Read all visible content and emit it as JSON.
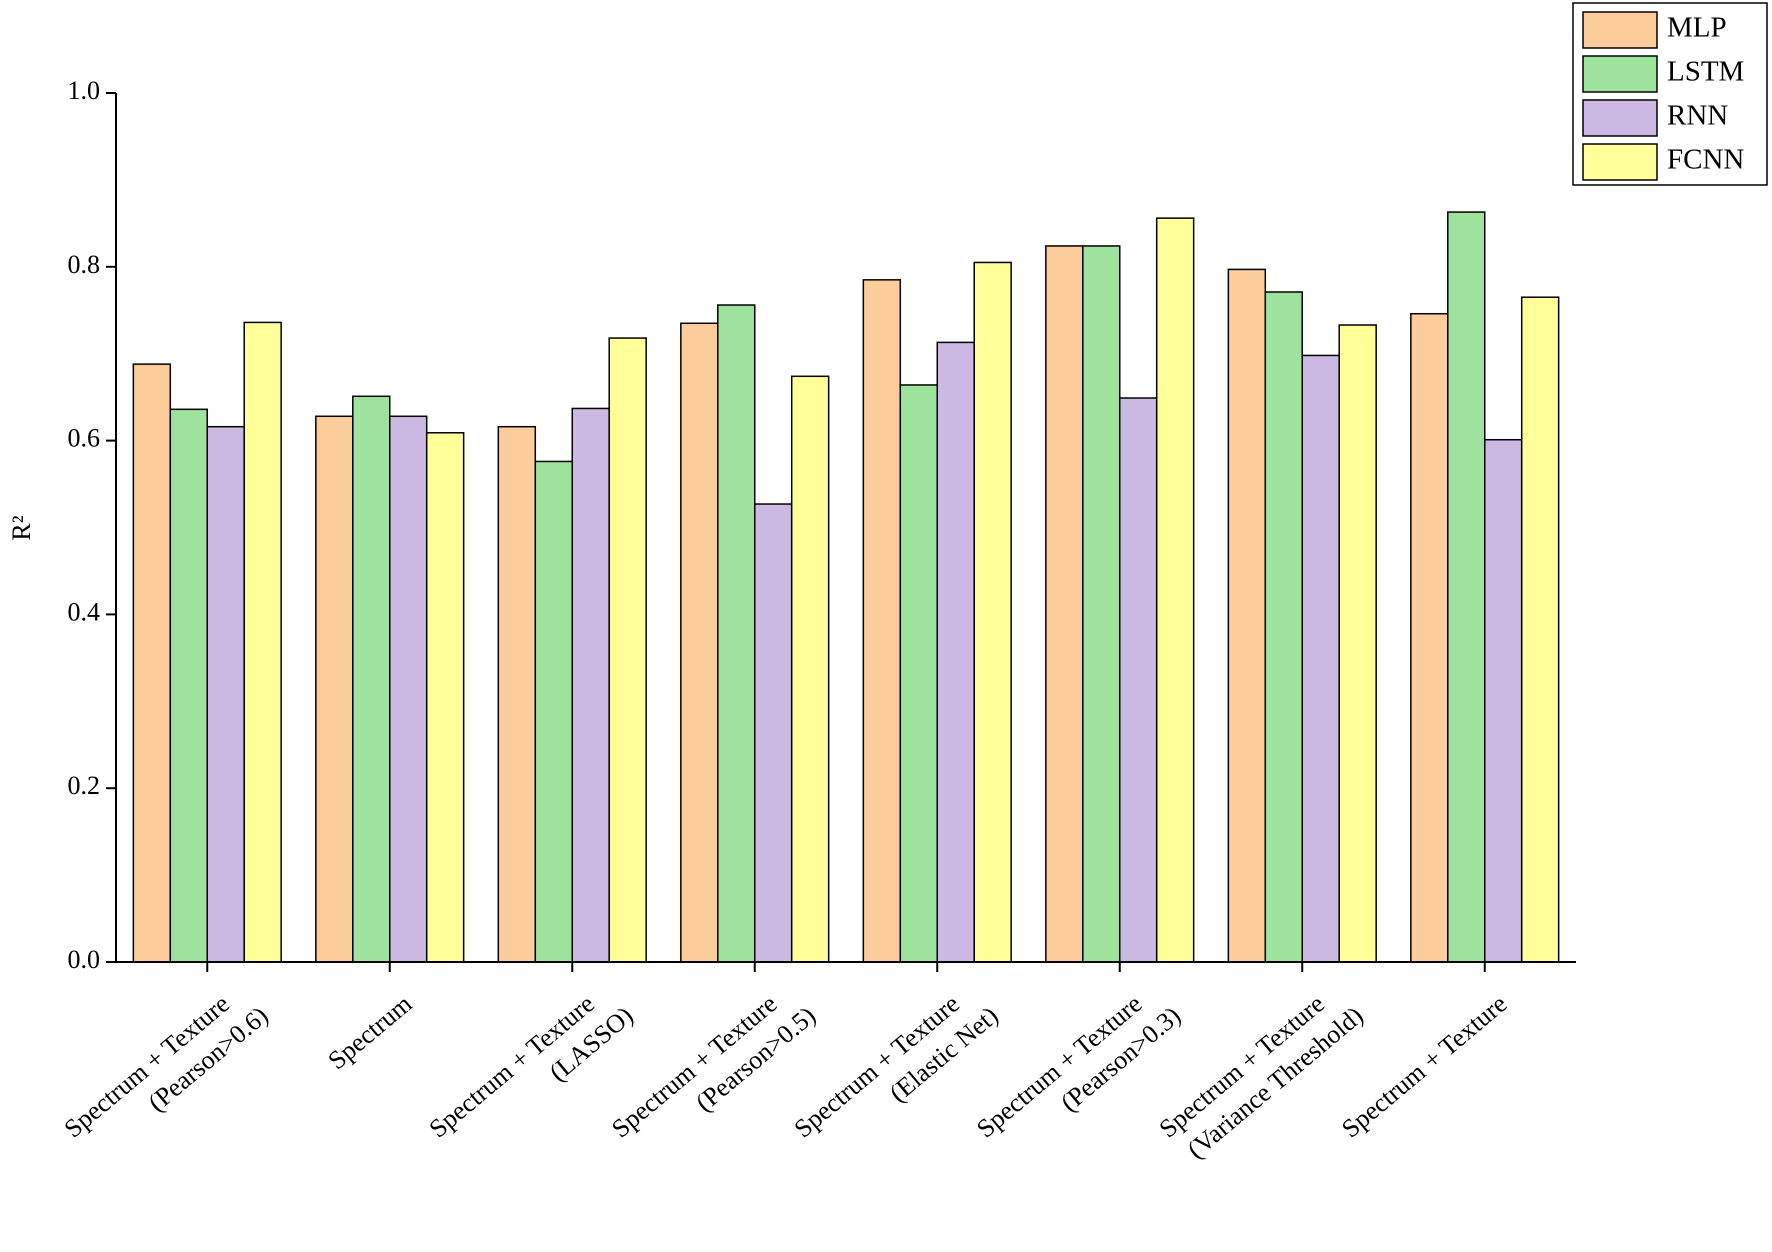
{
  "chart_data": {
    "type": "bar",
    "y_label": "R²",
    "categories": [
      [
        "Spectrum + Texture",
        "(Pearson>0.6)"
      ],
      [
        "Spectrum"
      ],
      [
        "Spectrum + Texture",
        "(LASSO)"
      ],
      [
        "Spectrum + Texture",
        "(Pearson>0.5)"
      ],
      [
        "Spectrum + Texture",
        "(Elastic Net)"
      ],
      [
        "Spectrum + Texture",
        "(Pearson>0.3)"
      ],
      [
        "Spectrum + Texture",
        "(Variance Threshold)"
      ],
      [
        "Spectrum + Texture"
      ]
    ],
    "series": [
      {
        "name": "MLP",
        "color": "#fdcc9b",
        "values": [
          0.688,
          0.628,
          0.616,
          0.735,
          0.785,
          0.824,
          0.797,
          0.746
        ]
      },
      {
        "name": "LSTM",
        "color": "#9de39d",
        "values": [
          0.636,
          0.651,
          0.576,
          0.756,
          0.664,
          0.824,
          0.771,
          0.863
        ]
      },
      {
        "name": "RNN",
        "color": "#cbb8e3",
        "values": [
          0.616,
          0.628,
          0.637,
          0.527,
          0.713,
          0.649,
          0.698,
          0.601
        ]
      },
      {
        "name": "FCNN",
        "color": "#ffff99",
        "values": [
          0.736,
          0.609,
          0.718,
          0.674,
          0.805,
          0.856,
          0.733,
          0.765
        ]
      }
    ],
    "ylim": [
      0,
      1
    ],
    "yticks": [
      {
        "value": 0,
        "label": "0.0"
      },
      0.2,
      0.4,
      0.6,
      0.8,
      {
        "value": 1,
        "label": "1.0"
      }
    ],
    "legend": "top-right"
  }
}
